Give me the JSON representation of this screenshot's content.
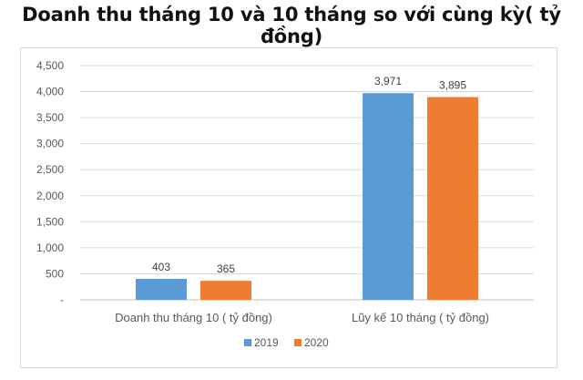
{
  "title": "Doanh thu tháng 10 và 10 tháng so với cùng kỳ( tỷ đồng)",
  "chart_data": {
    "type": "bar",
    "categories": [
      "Doanh thu tháng 10 ( tỷ đồng)",
      "Lũy kế 10 tháng ( tỷ  đồng)"
    ],
    "series": [
      {
        "name": "2019",
        "color": "#5b9bd5",
        "values": [
          403,
          3971
        ],
        "labels": [
          "403",
          "3,971"
        ]
      },
      {
        "name": "2020",
        "color": "#ed7d31",
        "values": [
          365,
          3895
        ],
        "labels": [
          "365",
          "3,895"
        ]
      }
    ],
    "ylim": [
      0,
      4500
    ],
    "yticks": [
      0,
      500,
      1000,
      1500,
      2000,
      2500,
      3000,
      3500,
      4000,
      4500
    ],
    "ytick_labels": [
      "-",
      "500",
      "1,000",
      "1,500",
      "2,000",
      "2,500",
      "3,000",
      "3,500",
      "4,000",
      "4,500"
    ],
    "grid": true,
    "legend_position": "bottom"
  }
}
